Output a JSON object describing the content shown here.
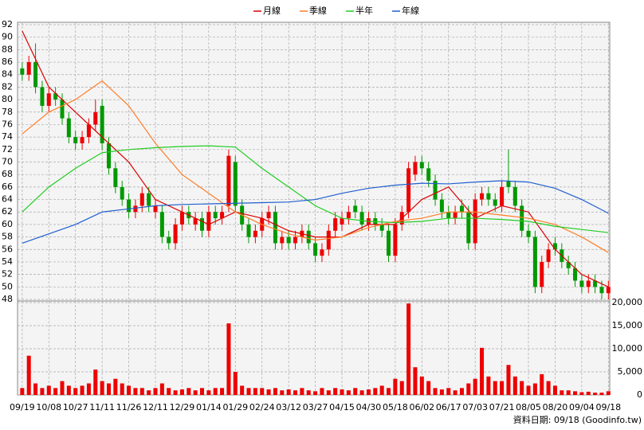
{
  "chart_data": {
    "type": "candlestick",
    "xlim": [
      -0.7,
      88.2
    ],
    "xticks": [
      {
        "value": 0,
        "label": "09/19"
      },
      {
        "value": 4,
        "label": "10/08"
      },
      {
        "value": 8,
        "label": "10/27"
      },
      {
        "value": 12,
        "label": "11/11"
      },
      {
        "value": 16,
        "label": "11/26"
      },
      {
        "value": 20,
        "label": "12/11"
      },
      {
        "value": 24,
        "label": "12/29"
      },
      {
        "value": 28,
        "label": "01/14"
      },
      {
        "value": 32,
        "label": "01/29"
      },
      {
        "value": 36,
        "label": "02/24"
      },
      {
        "value": 40,
        "label": "03/12"
      },
      {
        "value": 44,
        "label": "03/27"
      },
      {
        "value": 48,
        "label": "04/15"
      },
      {
        "value": 52,
        "label": "04/30"
      },
      {
        "value": 56,
        "label": "05/18"
      },
      {
        "value": 60,
        "label": "06/02"
      },
      {
        "value": 64,
        "label": "06/17"
      },
      {
        "value": 68,
        "label": "07/03"
      },
      {
        "value": 72,
        "label": "07/21"
      },
      {
        "value": 76,
        "label": "08/05"
      },
      {
        "value": 80,
        "label": "08/20"
      },
      {
        "value": 84,
        "label": "09/04"
      },
      {
        "value": 88,
        "label": "09/18"
      }
    ],
    "ylim": [
      48,
      92
    ],
    "yticks": [
      48,
      50,
      52,
      54,
      56,
      58,
      60,
      62,
      64,
      66,
      68,
      70,
      72,
      74,
      76,
      78,
      80,
      82,
      84,
      86,
      88,
      90,
      92
    ],
    "y2lim": [
      0,
      20000
    ],
    "y2ticks": [
      0,
      {
        "value": 5000,
        "label": "5,000"
      },
      {
        "value": 10000,
        "label": "10,000"
      },
      {
        "value": 15000,
        "label": "15,000"
      },
      {
        "value": 20000,
        "label": "20,000"
      }
    ],
    "grid": true,
    "up_color": "#ee0000",
    "down_color": "#009900",
    "volume_color": "#ee0000",
    "x": [
      0,
      1,
      2,
      3,
      4,
      5,
      6,
      7,
      8,
      9,
      10,
      11,
      12,
      13,
      14,
      15,
      16,
      17,
      18,
      19,
      20,
      21,
      22,
      23,
      24,
      25,
      26,
      27,
      28,
      29,
      30,
      31,
      32,
      33,
      34,
      35,
      36,
      37,
      38,
      39,
      40,
      41,
      42,
      43,
      44,
      45,
      46,
      47,
      48,
      49,
      50,
      51,
      52,
      53,
      54,
      55,
      56,
      57,
      58,
      59,
      60,
      61,
      62,
      63,
      64,
      65,
      66,
      67,
      68,
      69,
      70,
      71,
      72,
      73,
      74,
      75,
      76,
      77,
      78,
      79,
      80,
      81,
      82,
      83,
      84,
      85,
      86,
      87,
      88
    ],
    "open": [
      85,
      84,
      86,
      82,
      79,
      81,
      80,
      77,
      74,
      73,
      74,
      76,
      79,
      73,
      69,
      66,
      64,
      62,
      63,
      65,
      62,
      62,
      58,
      57,
      60,
      62,
      60,
      61,
      59,
      62,
      61,
      63,
      70,
      63,
      60,
      58,
      59,
      61,
      62,
      57,
      58,
      57,
      58,
      59,
      57,
      55,
      56,
      59,
      60,
      61,
      63,
      62,
      60,
      61,
      60,
      59,
      55,
      60,
      62,
      68,
      70,
      69,
      67,
      64,
      62,
      61,
      63,
      62,
      57,
      64,
      65,
      64,
      63,
      67,
      66,
      63,
      59,
      58,
      50,
      54,
      57,
      56,
      54,
      53,
      51,
      50,
      51,
      50,
      49
    ],
    "high": [
      86,
      87,
      89,
      83,
      82,
      82,
      81,
      78,
      75,
      75,
      77,
      80,
      80,
      74,
      70,
      67,
      65,
      64,
      66,
      66,
      64,
      63,
      59,
      61,
      63,
      63,
      62,
      62,
      63,
      63,
      63,
      72,
      71,
      64,
      61,
      60,
      62,
      63,
      63,
      59,
      59,
      59,
      60,
      60,
      58,
      57,
      60,
      62,
      62,
      63,
      64,
      63,
      62,
      62,
      61,
      60,
      61,
      63,
      70,
      71,
      71,
      70,
      68,
      65,
      63,
      63,
      64,
      63,
      65,
      66,
      66,
      65,
      67,
      72,
      67,
      64,
      60,
      59,
      55,
      57,
      58,
      57,
      55,
      54,
      52,
      52,
      52,
      51,
      51
    ],
    "low": [
      83,
      83,
      81,
      78,
      78,
      79,
      76,
      73,
      72,
      72,
      73,
      75,
      72,
      68,
      65,
      63,
      61,
      61,
      62,
      62,
      61,
      57,
      56,
      56,
      59,
      60,
      59,
      58,
      58,
      60,
      60,
      62,
      62,
      59,
      57,
      57,
      58,
      60,
      56,
      56,
      56,
      56,
      57,
      56,
      54,
      54,
      55,
      58,
      59,
      60,
      61,
      59,
      59,
      59,
      58,
      54,
      54,
      59,
      61,
      67,
      68,
      66,
      63,
      61,
      60,
      60,
      61,
      56,
      56,
      63,
      63,
      62,
      62,
      65,
      62,
      58,
      57,
      49,
      49,
      53,
      55,
      53,
      52,
      50,
      49,
      49,
      49,
      48,
      48
    ],
    "close": [
      84,
      86,
      82,
      79,
      81,
      80,
      77,
      74,
      73,
      74,
      76,
      78,
      73,
      69,
      66,
      64,
      62,
      63,
      65,
      63,
      63,
      58,
      57,
      60,
      62,
      61,
      61,
      59,
      62,
      61,
      62,
      71,
      63,
      60,
      58,
      59,
      61,
      62,
      57,
      58,
      57,
      58,
      59,
      57,
      55,
      56,
      59,
      61,
      61,
      62,
      62,
      60,
      61,
      60,
      59,
      55,
      60,
      62,
      69,
      70,
      69,
      67,
      64,
      62,
      61,
      62,
      62,
      57,
      64,
      65,
      64,
      63,
      66,
      66,
      63,
      59,
      58,
      50,
      54,
      56,
      56,
      54,
      53,
      51,
      50,
      51,
      50,
      49,
      50
    ],
    "volume": [
      1500,
      8500,
      2500,
      1500,
      2000,
      1500,
      3000,
      2000,
      1500,
      2000,
      2500,
      5500,
      3000,
      2500,
      3500,
      2500,
      2000,
      1500,
      1500,
      1000,
      1500,
      2500,
      1500,
      1000,
      1200,
      1500,
      1000,
      1500,
      1000,
      1500,
      1500,
      15500,
      5000,
      2000,
      1500,
      1500,
      1500,
      1200,
      1500,
      1000,
      1200,
      1000,
      1500,
      1000,
      800,
      1500,
      1000,
      1500,
      1200,
      1000,
      1500,
      1000,
      1200,
      1500,
      2000,
      1500,
      3500,
      3000,
      19800,
      6000,
      4000,
      3000,
      1500,
      1200,
      1500,
      1000,
      1500,
      2500,
      3500,
      10200,
      4000,
      3000,
      3000,
      6500,
      4000,
      3000,
      2000,
      2500,
      4500,
      3000,
      2000,
      1000,
      1000,
      800,
      600,
      700,
      500,
      500,
      800
    ],
    "series": [
      {
        "name": "月線",
        "color": "#dd0000",
        "x": [
          0,
          4,
          8,
          12,
          16,
          20,
          24,
          28,
          32,
          36,
          40,
          44,
          48,
          52,
          56,
          60,
          64,
          68,
          72,
          76,
          80,
          84,
          88
        ],
        "values": [
          91,
          82,
          78,
          74,
          70,
          64,
          62,
          60,
          62,
          61,
          59,
          58,
          58,
          60,
          60,
          64,
          66,
          61,
          63,
          62,
          56,
          52,
          50
        ]
      },
      {
        "name": "季線",
        "color": "#ff7f27",
        "x": [
          0,
          4,
          8,
          12,
          16,
          20,
          24,
          28,
          32,
          36,
          40,
          44,
          48,
          52,
          56,
          60,
          64,
          68,
          72,
          76,
          80,
          84,
          88
        ],
        "values": [
          74.5,
          78,
          80,
          83,
          79,
          73,
          68,
          65,
          62,
          60,
          58.5,
          57.5,
          58,
          59.5,
          60.5,
          61,
          62,
          62,
          61.5,
          61,
          60,
          58,
          55.5
        ]
      },
      {
        "name": "半年",
        "color": "#22cc22",
        "x": [
          0,
          4,
          8,
          12,
          16,
          20,
          24,
          28,
          32,
          36,
          40,
          44,
          48,
          52,
          56,
          60,
          64,
          68,
          72,
          76,
          80,
          84,
          88
        ],
        "values": [
          62,
          66,
          69,
          71.5,
          72,
          72.3,
          72.5,
          72.6,
          72.4,
          69,
          66,
          63,
          61,
          60.5,
          60.3,
          60.5,
          61,
          61,
          60.8,
          60.5,
          59.7,
          59.2,
          58.7
        ]
      },
      {
        "name": "年線",
        "color": "#1f5fcf",
        "x": [
          0,
          4,
          8,
          12,
          16,
          20,
          24,
          28,
          32,
          36,
          40,
          44,
          48,
          52,
          56,
          60,
          64,
          68,
          72,
          76,
          80,
          84,
          88
        ],
        "values": [
          57,
          58.5,
          60,
          62,
          62.5,
          63,
          63.2,
          63.3,
          63.4,
          63.5,
          63.6,
          64,
          65,
          65.8,
          66.3,
          66.6,
          66.5,
          66.8,
          67,
          66.8,
          65.8,
          64,
          61.8
        ]
      }
    ],
    "footer": "資料日期: 09/18  (Goodinfo.tw)"
  }
}
